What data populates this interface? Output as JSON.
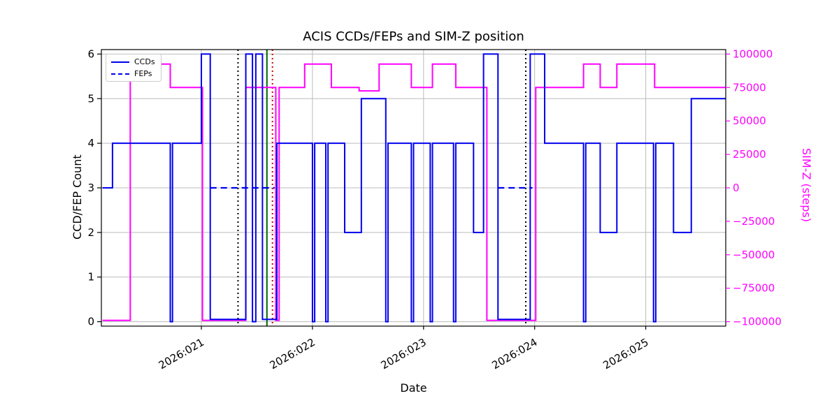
{
  "chart_data": {
    "type": "line",
    "title": "ACIS CCDs/FEPs and SIM-Z position",
    "xlabel": "Date",
    "ylabel_left": "CCD/FEP Count",
    "ylabel_right": "SIM-Z (steps)",
    "grid": true,
    "legend_position": "upper left",
    "x_axis": {
      "range": [
        20.1,
        25.72
      ],
      "ticks": [
        21,
        22,
        23,
        24,
        25
      ],
      "tick_labels": [
        "2026:021",
        "2026:022",
        "2026:023",
        "2026:024",
        "2026:025"
      ]
    },
    "y_left": {
      "range": [
        -0.1,
        6.1
      ],
      "ticks": [
        0,
        1,
        2,
        3,
        4,
        5,
        6
      ],
      "tick_labels": [
        "0",
        "1",
        "2",
        "3",
        "4",
        "5",
        "6"
      ],
      "color": "#000000"
    },
    "y_right": {
      "range": [
        -103333,
        103333
      ],
      "ticks": [
        100000,
        75000,
        50000,
        25000,
        0,
        -25000,
        -50000,
        -75000,
        -100000
      ],
      "tick_labels": [
        "100000",
        "75000",
        "50000",
        "25000",
        "0",
        "−25000",
        "−50000",
        "−75000",
        "−100000"
      ],
      "color": "#ff00ff"
    },
    "series": [
      {
        "name": "CCDs",
        "color": "#0000ee",
        "style": "solid",
        "axis": "left",
        "draw": "step",
        "points": [
          [
            20.11,
            3
          ],
          [
            20.2,
            4
          ],
          [
            20.72,
            0
          ],
          [
            20.74,
            4
          ],
          [
            21.0,
            6
          ],
          [
            21.08,
            0.05
          ],
          [
            21.4,
            6
          ],
          [
            21.46,
            0
          ],
          [
            21.49,
            6
          ],
          [
            21.55,
            0.05
          ],
          [
            21.68,
            4
          ],
          [
            22.0,
            0
          ],
          [
            22.02,
            4
          ],
          [
            22.12,
            0
          ],
          [
            22.14,
            4
          ],
          [
            22.29,
            2
          ],
          [
            22.44,
            5
          ],
          [
            22.66,
            0
          ],
          [
            22.68,
            4
          ],
          [
            22.89,
            0
          ],
          [
            22.91,
            4
          ],
          [
            23.06,
            0
          ],
          [
            23.08,
            4
          ],
          [
            23.27,
            0
          ],
          [
            23.29,
            4
          ],
          [
            23.45,
            2
          ],
          [
            23.54,
            6
          ],
          [
            23.67,
            0.05
          ],
          [
            23.96,
            6
          ],
          [
            24.09,
            4
          ],
          [
            24.44,
            0
          ],
          [
            24.46,
            4
          ],
          [
            24.59,
            2
          ],
          [
            24.74,
            4
          ],
          [
            25.07,
            0
          ],
          [
            25.09,
            4
          ],
          [
            25.25,
            2
          ],
          [
            25.41,
            5
          ],
          [
            25.72,
            5
          ]
        ]
      },
      {
        "name": "FEPs",
        "color": "#0000ee",
        "style": "dashed",
        "axis": "left",
        "draw": "segments",
        "segments": [
          [
            21.08,
            21.66,
            3
          ],
          [
            23.67,
            23.98,
            3
          ]
        ]
      },
      {
        "name": "SIM-Z",
        "color": "#ff00ff",
        "style": "solid",
        "axis": "right",
        "draw": "step",
        "points": [
          [
            20.11,
            -99000
          ],
          [
            20.36,
            92500
          ],
          [
            20.72,
            75000
          ],
          [
            21.01,
            -99000
          ],
          [
            21.4,
            75000
          ],
          [
            21.67,
            -99000
          ],
          [
            21.7,
            75000
          ],
          [
            21.93,
            92500
          ],
          [
            22.17,
            75000
          ],
          [
            22.42,
            72500
          ],
          [
            22.6,
            92500
          ],
          [
            22.89,
            75000
          ],
          [
            23.08,
            92500
          ],
          [
            23.29,
            75000
          ],
          [
            23.57,
            -99000
          ],
          [
            24.01,
            75000
          ],
          [
            24.44,
            92500
          ],
          [
            24.59,
            75000
          ],
          [
            24.74,
            92500
          ],
          [
            25.08,
            75000
          ],
          [
            25.72,
            75000
          ]
        ]
      }
    ],
    "vlines": [
      {
        "x": 21.33,
        "color": "#000000",
        "style": "dotted"
      },
      {
        "x": 21.59,
        "color": "#006400",
        "style": "solid"
      },
      {
        "x": 21.64,
        "color": "#cc0000",
        "style": "dotted"
      },
      {
        "x": 23.92,
        "color": "#000000",
        "style": "dotted"
      }
    ],
    "colors": {
      "grid": "#bbbbbb",
      "spine": "#000000",
      "background": "#ffffff"
    }
  }
}
